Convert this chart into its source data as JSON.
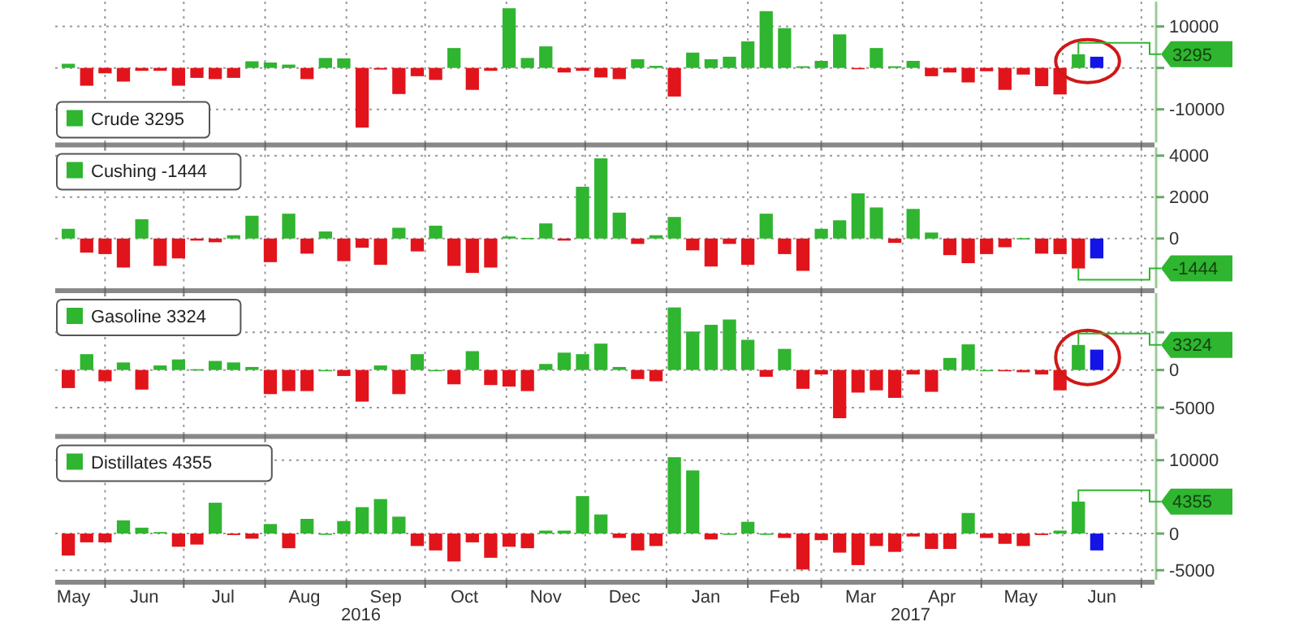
{
  "chart_data": [
    {
      "type": "bar",
      "xlim": [
        "2016-05-13",
        "2017-07-06"
      ],
      "ylim": [
        -18000,
        16000
      ],
      "yticks": [
        10000,
        {
          "value": 0,
          "label": null
        },
        -10000
      ],
      "grid": true,
      "legend": "bottom left",
      "tick_labels": "y",
      "xticks": [
        {
          "value": "2016-06-01",
          "label": null
        },
        {
          "value": "2016-07-01",
          "label": null
        },
        {
          "value": "2016-08-01",
          "label": null
        },
        {
          "value": "2016-09-01",
          "label": null
        },
        {
          "value": "2016-10-01",
          "label": null
        },
        {
          "value": "2016-11-01",
          "label": null
        },
        {
          "value": "2016-12-01",
          "label": null
        },
        {
          "value": "2017-01-01",
          "label": null
        },
        {
          "value": "2017-02-01",
          "label": null
        },
        {
          "value": "2017-03-01",
          "label": null
        },
        {
          "value": "2017-04-01",
          "label": null
        },
        {
          "value": "2017-05-01",
          "label": null
        },
        {
          "value": "2017-06-01",
          "label": null
        },
        {
          "value": "2017-07-01",
          "label": null
        }
      ],
      "annotations": [
        {
          "text": "3295",
          "x": "2017-06-07",
          "y": 3295
        }
      ],
      "series": [
        {
          "name": "Crude 3295",
          "color": "#2fb52f",
          "x": [
            "2016-05-18",
            "2016-05-25",
            "2016-06-01",
            "2016-06-08",
            "2016-06-15",
            "2016-06-22",
            "2016-06-29",
            "2016-07-06",
            "2016-07-13",
            "2016-07-20",
            "2016-07-27",
            "2016-08-03",
            "2016-08-10",
            "2016-08-17",
            "2016-08-24",
            "2016-08-31",
            "2016-09-07",
            "2016-09-14",
            "2016-09-21",
            "2016-09-28",
            "2016-10-05",
            "2016-10-12",
            "2016-10-19",
            "2016-10-26",
            "2016-11-02",
            "2016-11-09",
            "2016-11-16",
            "2016-11-23",
            "2016-11-30",
            "2016-12-07",
            "2016-12-14",
            "2016-12-21",
            "2016-12-28",
            "2017-01-04",
            "2017-01-11",
            "2017-01-18",
            "2017-01-25",
            "2017-02-01",
            "2017-02-08",
            "2017-02-15",
            "2017-02-22",
            "2017-03-01",
            "2017-03-08",
            "2017-03-15",
            "2017-03-22",
            "2017-03-29",
            "2017-04-05",
            "2017-04-12",
            "2017-04-19",
            "2017-04-26",
            "2017-05-03",
            "2017-05-10",
            "2017-05-17",
            "2017-05-24",
            "2017-05-31",
            "2017-06-07",
            "2017-06-14"
          ],
          "values": [
            1000,
            -4300,
            -1300,
            -3300,
            -700,
            -700,
            -4300,
            -2400,
            -2700,
            -2400,
            1600,
            1300,
            800,
            -2700,
            2400,
            2300,
            -14400,
            -400,
            -6300,
            -2000,
            -2900,
            4800,
            -5300,
            -700,
            14400,
            2400,
            5200,
            -1100,
            -700,
            -2300,
            -2700,
            2100,
            500,
            -6900,
            3700,
            2100,
            2700,
            6400,
            13700,
            9600,
            400,
            1700,
            8100,
            -300,
            4800,
            400,
            1700,
            -2000,
            -1100,
            -3500,
            -800,
            -5300,
            -1600,
            -4400,
            -6400,
            3295,
            2700
          ],
          "colors": [
            "#2fb52f",
            "#e2141b",
            "#e2141b",
            "#e2141b",
            "#e2141b",
            "#e2141b",
            "#e2141b",
            "#e2141b",
            "#e2141b",
            "#e2141b",
            "#2fb52f",
            "#2fb52f",
            "#2fb52f",
            "#e2141b",
            "#2fb52f",
            "#2fb52f",
            "#e2141b",
            "#e2141b",
            "#e2141b",
            "#e2141b",
            "#e2141b",
            "#2fb52f",
            "#e2141b",
            "#e2141b",
            "#2fb52f",
            "#2fb52f",
            "#2fb52f",
            "#e2141b",
            "#e2141b",
            "#e2141b",
            "#e2141b",
            "#2fb52f",
            "#2fb52f",
            "#e2141b",
            "#2fb52f",
            "#2fb52f",
            "#2fb52f",
            "#2fb52f",
            "#2fb52f",
            "#2fb52f",
            "#2fb52f",
            "#2fb52f",
            "#2fb52f",
            "#e2141b",
            "#2fb52f",
            "#2fb52f",
            "#2fb52f",
            "#e2141b",
            "#e2141b",
            "#e2141b",
            "#e2141b",
            "#e2141b",
            "#e2141b",
            "#e2141b",
            "#e2141b",
            "#2fb52f",
            "#1414e6"
          ]
        }
      ]
    },
    {
      "type": "bar",
      "xlim": [
        "2016-05-13",
        "2017-07-06"
      ],
      "ylim": [
        -2400,
        4400
      ],
      "yticks": [
        4000,
        2000,
        0
      ],
      "grid": true,
      "legend": "top left",
      "tick_labels": "y",
      "xticks": [
        {
          "value": "2016-06-01",
          "label": null
        },
        {
          "value": "2016-07-01",
          "label": null
        },
        {
          "value": "2016-08-01",
          "label": null
        },
        {
          "value": "2016-09-01",
          "label": null
        },
        {
          "value": "2016-10-01",
          "label": null
        },
        {
          "value": "2016-11-01",
          "label": null
        },
        {
          "value": "2016-12-01",
          "label": null
        },
        {
          "value": "2017-01-01",
          "label": null
        },
        {
          "value": "2017-02-01",
          "label": null
        },
        {
          "value": "2017-03-01",
          "label": null
        },
        {
          "value": "2017-04-01",
          "label": null
        },
        {
          "value": "2017-05-01",
          "label": null
        },
        {
          "value": "2017-06-01",
          "label": null
        },
        {
          "value": "2017-07-01",
          "label": null
        }
      ],
      "annotations": [
        {
          "text": "-1444",
          "x": "2017-06-07",
          "y": -1444
        }
      ],
      "series": [
        {
          "name": "Cushing -1444",
          "color": "#2fb52f",
          "x": [
            "2016-05-18",
            "2016-05-25",
            "2016-06-01",
            "2016-06-08",
            "2016-06-15",
            "2016-06-22",
            "2016-06-29",
            "2016-07-06",
            "2016-07-13",
            "2016-07-20",
            "2016-07-27",
            "2016-08-03",
            "2016-08-10",
            "2016-08-17",
            "2016-08-24",
            "2016-08-31",
            "2016-09-07",
            "2016-09-14",
            "2016-09-21",
            "2016-09-28",
            "2016-10-05",
            "2016-10-12",
            "2016-10-19",
            "2016-10-26",
            "2016-11-02",
            "2016-11-09",
            "2016-11-16",
            "2016-11-23",
            "2016-11-30",
            "2016-12-07",
            "2016-12-14",
            "2016-12-21",
            "2016-12-28",
            "2017-01-04",
            "2017-01-11",
            "2017-01-18",
            "2017-01-25",
            "2017-02-01",
            "2017-02-08",
            "2017-02-15",
            "2017-02-22",
            "2017-03-01",
            "2017-03-08",
            "2017-03-15",
            "2017-03-22",
            "2017-03-29",
            "2017-04-05",
            "2017-04-12",
            "2017-04-19",
            "2017-04-26",
            "2017-05-03",
            "2017-05-10",
            "2017-05-17",
            "2017-05-24",
            "2017-05-31",
            "2017-06-07",
            "2017-06-14"
          ],
          "values": [
            470,
            -680,
            -750,
            -1400,
            930,
            -1320,
            -960,
            -100,
            -180,
            160,
            1100,
            -1140,
            1200,
            -730,
            340,
            -1090,
            -440,
            -1270,
            520,
            -620,
            620,
            -1320,
            -1660,
            -1400,
            100,
            30,
            730,
            -100,
            2500,
            3870,
            1250,
            -260,
            160,
            1040,
            -570,
            -1350,
            -260,
            -1270,
            1200,
            -750,
            -1560,
            470,
            880,
            2180,
            1500,
            -210,
            1430,
            290,
            -800,
            -1190,
            -750,
            -420,
            20,
            -730,
            -750,
            -1444,
            -960
          ],
          "colors": [
            "#2fb52f",
            "#e2141b",
            "#e2141b",
            "#e2141b",
            "#2fb52f",
            "#e2141b",
            "#e2141b",
            "#e2141b",
            "#e2141b",
            "#2fb52f",
            "#2fb52f",
            "#e2141b",
            "#2fb52f",
            "#e2141b",
            "#2fb52f",
            "#e2141b",
            "#e2141b",
            "#e2141b",
            "#2fb52f",
            "#e2141b",
            "#2fb52f",
            "#e2141b",
            "#e2141b",
            "#e2141b",
            "#2fb52f",
            "#2fb52f",
            "#2fb52f",
            "#e2141b",
            "#2fb52f",
            "#2fb52f",
            "#2fb52f",
            "#e2141b",
            "#2fb52f",
            "#2fb52f",
            "#e2141b",
            "#e2141b",
            "#e2141b",
            "#e2141b",
            "#2fb52f",
            "#e2141b",
            "#e2141b",
            "#2fb52f",
            "#2fb52f",
            "#2fb52f",
            "#2fb52f",
            "#e2141b",
            "#2fb52f",
            "#2fb52f",
            "#e2141b",
            "#e2141b",
            "#e2141b",
            "#e2141b",
            "#2fb52f",
            "#e2141b",
            "#e2141b",
            "#e2141b",
            "#1414e6"
          ]
        }
      ]
    },
    {
      "type": "bar",
      "xlim": [
        "2016-05-13",
        "2017-07-06"
      ],
      "ylim": [
        -8500,
        10200
      ],
      "yticks": [
        {
          "value": 5000,
          "label": null
        },
        0,
        -5000
      ],
      "grid": true,
      "legend": "top left",
      "tick_labels": "y",
      "xticks": [
        {
          "value": "2016-06-01",
          "label": null
        },
        {
          "value": "2016-07-01",
          "label": null
        },
        {
          "value": "2016-08-01",
          "label": null
        },
        {
          "value": "2016-09-01",
          "label": null
        },
        {
          "value": "2016-10-01",
          "label": null
        },
        {
          "value": "2016-11-01",
          "label": null
        },
        {
          "value": "2016-12-01",
          "label": null
        },
        {
          "value": "2017-01-01",
          "label": null
        },
        {
          "value": "2017-02-01",
          "label": null
        },
        {
          "value": "2017-03-01",
          "label": null
        },
        {
          "value": "2017-04-01",
          "label": null
        },
        {
          "value": "2017-05-01",
          "label": null
        },
        {
          "value": "2017-06-01",
          "label": null
        },
        {
          "value": "2017-07-01",
          "label": null
        }
      ],
      "annotations": [
        {
          "text": "3324",
          "x": "2017-06-07",
          "y": 3324
        }
      ],
      "series": [
        {
          "name": "Gasoline 3324",
          "color": "#2fb52f",
          "x": [
            "2016-05-18",
            "2016-05-25",
            "2016-06-01",
            "2016-06-08",
            "2016-06-15",
            "2016-06-22",
            "2016-06-29",
            "2016-07-06",
            "2016-07-13",
            "2016-07-20",
            "2016-07-27",
            "2016-08-03",
            "2016-08-10",
            "2016-08-17",
            "2016-08-24",
            "2016-08-31",
            "2016-09-07",
            "2016-09-14",
            "2016-09-21",
            "2016-09-28",
            "2016-10-05",
            "2016-10-12",
            "2016-10-19",
            "2016-10-26",
            "2016-11-02",
            "2016-11-09",
            "2016-11-16",
            "2016-11-23",
            "2016-11-30",
            "2016-12-07",
            "2016-12-14",
            "2016-12-21",
            "2016-12-28",
            "2017-01-04",
            "2017-01-11",
            "2017-01-18",
            "2017-01-25",
            "2017-02-01",
            "2017-02-08",
            "2017-02-15",
            "2017-02-22",
            "2017-03-01",
            "2017-03-08",
            "2017-03-15",
            "2017-03-22",
            "2017-03-29",
            "2017-04-05",
            "2017-04-12",
            "2017-04-19",
            "2017-04-26",
            "2017-05-03",
            "2017-05-10",
            "2017-05-17",
            "2017-05-24",
            "2017-05-31",
            "2017-06-07",
            "2017-06-14"
          ],
          "values": [
            -2400,
            2100,
            -1500,
            1000,
            -2600,
            600,
            1400,
            100,
            1200,
            1000,
            400,
            -3200,
            -2800,
            -2800,
            0,
            -800,
            -4200,
            600,
            -3200,
            2100,
            0,
            -1900,
            2500,
            -2000,
            -2200,
            -2800,
            800,
            2300,
            2100,
            3500,
            400,
            -1200,
            -1500,
            8300,
            5100,
            6000,
            6700,
            4000,
            -900,
            2800,
            -2500,
            -600,
            -6400,
            -3000,
            -2700,
            -3700,
            -600,
            -2900,
            1600,
            3400,
            0,
            0,
            -300,
            -600,
            -2700,
            3324,
            2700
          ],
          "colors": [
            "#e2141b",
            "#2fb52f",
            "#e2141b",
            "#2fb52f",
            "#e2141b",
            "#2fb52f",
            "#2fb52f",
            "#2fb52f",
            "#2fb52f",
            "#2fb52f",
            "#2fb52f",
            "#e2141b",
            "#e2141b",
            "#e2141b",
            "#2fb52f",
            "#e2141b",
            "#e2141b",
            "#2fb52f",
            "#e2141b",
            "#2fb52f",
            "#2fb52f",
            "#e2141b",
            "#2fb52f",
            "#e2141b",
            "#e2141b",
            "#e2141b",
            "#2fb52f",
            "#2fb52f",
            "#2fb52f",
            "#2fb52f",
            "#2fb52f",
            "#e2141b",
            "#e2141b",
            "#2fb52f",
            "#2fb52f",
            "#2fb52f",
            "#2fb52f",
            "#2fb52f",
            "#e2141b",
            "#2fb52f",
            "#e2141b",
            "#e2141b",
            "#e2141b",
            "#e2141b",
            "#e2141b",
            "#e2141b",
            "#e2141b",
            "#e2141b",
            "#2fb52f",
            "#2fb52f",
            "#2fb52f",
            "#e2141b",
            "#e2141b",
            "#e2141b",
            "#e2141b",
            "#2fb52f",
            "#1414e6"
          ]
        }
      ]
    },
    {
      "type": "bar",
      "xlim": [
        "2016-05-13",
        "2017-07-06"
      ],
      "ylim": [
        -6300,
        12900
      ],
      "yticks": [
        10000,
        0,
        -5000
      ],
      "grid": true,
      "legend": "top left",
      "xticks": [
        {
          "value": "2016-05-20",
          "label": "May"
        },
        {
          "value": "2016-06-01",
          "label": null
        },
        {
          "value": "2016-06-16",
          "label": "Jun"
        },
        {
          "value": "2016-07-01",
          "label": null
        },
        {
          "value": "2016-07-16",
          "label": "Jul"
        },
        {
          "value": "2016-08-01",
          "label": null
        },
        {
          "value": "2016-08-16",
          "label": "Aug"
        },
        {
          "value": "2016-09-01",
          "label": null
        },
        {
          "value": "2016-09-16",
          "label": "Sep"
        },
        {
          "value": "2016-10-01",
          "label": null
        },
        {
          "value": "2016-10-16",
          "label": "Oct"
        },
        {
          "value": "2016-11-01",
          "label": null
        },
        {
          "value": "2016-11-16",
          "label": "Nov"
        },
        {
          "value": "2016-12-01",
          "label": null
        },
        {
          "value": "2016-12-16",
          "label": "Dec"
        },
        {
          "value": "2017-01-01",
          "label": null
        },
        {
          "value": "2017-01-16",
          "label": "Jan"
        },
        {
          "value": "2017-02-01",
          "label": null
        },
        {
          "value": "2017-02-15",
          "label": "Feb"
        },
        {
          "value": "2017-03-01",
          "label": null
        },
        {
          "value": "2017-03-16",
          "label": "Mar"
        },
        {
          "value": "2017-04-01",
          "label": null
        },
        {
          "value": "2017-04-16",
          "label": "Apr"
        },
        {
          "value": "2017-05-01",
          "label": null
        },
        {
          "value": "2017-05-16",
          "label": "May"
        },
        {
          "value": "2017-06-01",
          "label": null
        },
        {
          "value": "2017-06-16",
          "label": "Jun"
        },
        {
          "value": "2017-07-01",
          "label": null
        }
      ],
      "annotations": [
        "2016",
        "2017",
        {
          "text": "4355",
          "x": "2017-06-07",
          "y": 4355
        }
      ],
      "series": [
        {
          "name": "Distillates 4355",
          "color": "#2fb52f",
          "x": [
            "2016-05-18",
            "2016-05-25",
            "2016-06-01",
            "2016-06-08",
            "2016-06-15",
            "2016-06-22",
            "2016-06-29",
            "2016-07-06",
            "2016-07-13",
            "2016-07-20",
            "2016-07-27",
            "2016-08-03",
            "2016-08-10",
            "2016-08-17",
            "2016-08-24",
            "2016-08-31",
            "2016-09-07",
            "2016-09-14",
            "2016-09-21",
            "2016-09-28",
            "2016-10-05",
            "2016-10-12",
            "2016-10-19",
            "2016-10-26",
            "2016-11-02",
            "2016-11-09",
            "2016-11-16",
            "2016-11-23",
            "2016-11-30",
            "2016-12-07",
            "2016-12-14",
            "2016-12-21",
            "2016-12-28",
            "2017-01-04",
            "2017-01-11",
            "2017-01-18",
            "2017-01-25",
            "2017-02-01",
            "2017-02-08",
            "2017-02-15",
            "2017-02-22",
            "2017-03-01",
            "2017-03-08",
            "2017-03-15",
            "2017-03-22",
            "2017-03-29",
            "2017-04-05",
            "2017-04-12",
            "2017-04-19",
            "2017-04-26",
            "2017-05-03",
            "2017-05-10",
            "2017-05-17",
            "2017-05-24",
            "2017-05-31",
            "2017-06-07",
            "2017-06-14"
          ],
          "values": [
            -3000,
            -1200,
            -1200,
            1800,
            800,
            200,
            -1800,
            -1500,
            4200,
            -200,
            -700,
            1300,
            -2000,
            2000,
            0,
            1700,
            3600,
            4700,
            2300,
            -1700,
            -2300,
            -3800,
            -1200,
            -3300,
            -1800,
            -2000,
            400,
            400,
            5100,
            2600,
            -600,
            -2300,
            -1700,
            10400,
            8600,
            -800,
            0,
            1600,
            0,
            -600,
            -4900,
            -900,
            -2600,
            -4300,
            -1700,
            -2500,
            -400,
            -2100,
            -2100,
            2800,
            -600,
            -1400,
            -1700,
            -200,
            400,
            4355,
            -2300
          ],
          "colors": [
            "#e2141b",
            "#e2141b",
            "#e2141b",
            "#2fb52f",
            "#2fb52f",
            "#2fb52f",
            "#e2141b",
            "#e2141b",
            "#2fb52f",
            "#e2141b",
            "#e2141b",
            "#2fb52f",
            "#e2141b",
            "#2fb52f",
            "#2fb52f",
            "#2fb52f",
            "#2fb52f",
            "#2fb52f",
            "#2fb52f",
            "#e2141b",
            "#e2141b",
            "#e2141b",
            "#e2141b",
            "#e2141b",
            "#e2141b",
            "#e2141b",
            "#2fb52f",
            "#2fb52f",
            "#2fb52f",
            "#2fb52f",
            "#e2141b",
            "#e2141b",
            "#e2141b",
            "#2fb52f",
            "#2fb52f",
            "#e2141b",
            "#2fb52f",
            "#2fb52f",
            "#2fb52f",
            "#e2141b",
            "#e2141b",
            "#e2141b",
            "#e2141b",
            "#e2141b",
            "#e2141b",
            "#e2141b",
            "#e2141b",
            "#e2141b",
            "#e2141b",
            "#2fb52f",
            "#e2141b",
            "#e2141b",
            "#e2141b",
            "#e2141b",
            "#2fb52f",
            "#2fb52f",
            "#1414e6"
          ]
        }
      ]
    }
  ]
}
